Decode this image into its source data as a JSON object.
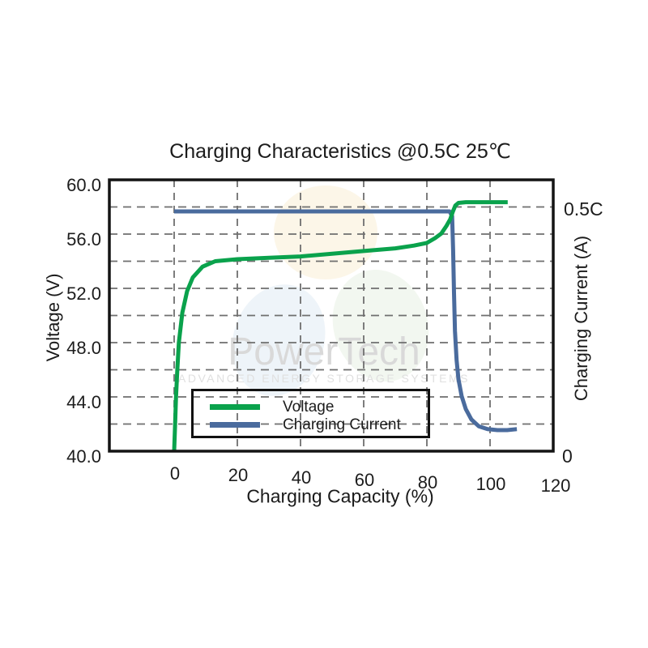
{
  "title": "Charging Characteristics @0.5C 25℃",
  "watermark": {
    "name": "PowerTech",
    "tagline": "ADVANCED ENERGY STORAGE SYSTEMS"
  },
  "axes": {
    "x": {
      "label": "Charging Capacity (%)",
      "ticks": [
        "0",
        "20",
        "40",
        "60",
        "80",
        "100",
        "120"
      ]
    },
    "y_left": {
      "label": "Voltage (V)",
      "ticks": [
        "60.0",
        "56.0",
        "52.0",
        "48.0",
        "44.0",
        "40.0"
      ]
    },
    "y_right": {
      "label": "Charging Current (A)",
      "top_tick": "0.5C",
      "bottom_tick": "0"
    }
  },
  "legend": [
    {
      "label": "Voltage",
      "color": "#0aa24c"
    },
    {
      "label": "Charging Current",
      "color": "#4a6b9d"
    }
  ],
  "colors": {
    "grid": "#6f6f6f",
    "frame": "#141414",
    "voltage": "#0aa24c",
    "current": "#4a6b9d",
    "watermark_text": "#d9d9d9",
    "watermark_tagline": "#e0e0e0"
  },
  "chart_data": {
    "type": "line",
    "title": "Charging Characteristics @0.5C 25℃",
    "xlabel": "Charging Capacity (%)",
    "ylabel_left": "Voltage (V)",
    "ylabel_right": "Charging Current (A)",
    "x_range": [
      -20,
      120
    ],
    "x_tick_values": [
      0,
      20,
      40,
      60,
      80,
      100,
      120
    ],
    "y_left_range": [
      40,
      60
    ],
    "y_left_tick_values": [
      40,
      44,
      48,
      52,
      56,
      60
    ],
    "y_left_grid_step": 2,
    "y_right_range_C": [
      0,
      0.68
    ],
    "y_right_marks": [
      "0",
      "0.5C"
    ],
    "grid": "dashed",
    "legend_position": "lower-left-inside",
    "series": [
      {
        "name": "Voltage",
        "axis": "left",
        "unit": "V",
        "color": "#0aa24c",
        "points": [
          [
            0,
            40.0
          ],
          [
            0.3,
            42.0
          ],
          [
            0.6,
            44.0
          ],
          [
            1.0,
            46.0
          ],
          [
            1.5,
            48.0
          ],
          [
            2.6,
            50.2
          ],
          [
            4.1,
            51.8
          ],
          [
            5.9,
            52.8
          ],
          [
            9.0,
            53.6
          ],
          [
            13.0,
            54.0
          ],
          [
            20.0,
            54.15
          ],
          [
            30.0,
            54.25
          ],
          [
            40.0,
            54.35
          ],
          [
            50.0,
            54.55
          ],
          [
            60.0,
            54.75
          ],
          [
            70.0,
            54.95
          ],
          [
            75.9,
            55.15
          ],
          [
            80.0,
            55.35
          ],
          [
            82.6,
            55.7
          ],
          [
            84.6,
            56.05
          ],
          [
            86.2,
            56.6
          ],
          [
            87.4,
            57.1
          ],
          [
            88.2,
            57.65
          ],
          [
            89.0,
            58.1
          ],
          [
            90.0,
            58.3
          ],
          [
            92.3,
            58.35
          ],
          [
            105.6,
            58.35
          ]
        ]
      },
      {
        "name": "Charging Current",
        "axis": "right",
        "unit": "C",
        "color": "#4a6b9d",
        "points": [
          [
            0,
            0.5
          ],
          [
            87.2,
            0.5
          ],
          [
            88.0,
            0.49
          ],
          [
            88.3,
            0.42
          ],
          [
            88.6,
            0.33
          ],
          [
            88.9,
            0.25
          ],
          [
            89.4,
            0.19
          ],
          [
            90.0,
            0.15
          ],
          [
            91.0,
            0.115
          ],
          [
            92.3,
            0.088
          ],
          [
            94.1,
            0.066
          ],
          [
            96.4,
            0.052
          ],
          [
            99.2,
            0.046
          ],
          [
            102.3,
            0.044
          ],
          [
            105.4,
            0.044
          ],
          [
            108.5,
            0.046
          ]
        ]
      }
    ]
  }
}
